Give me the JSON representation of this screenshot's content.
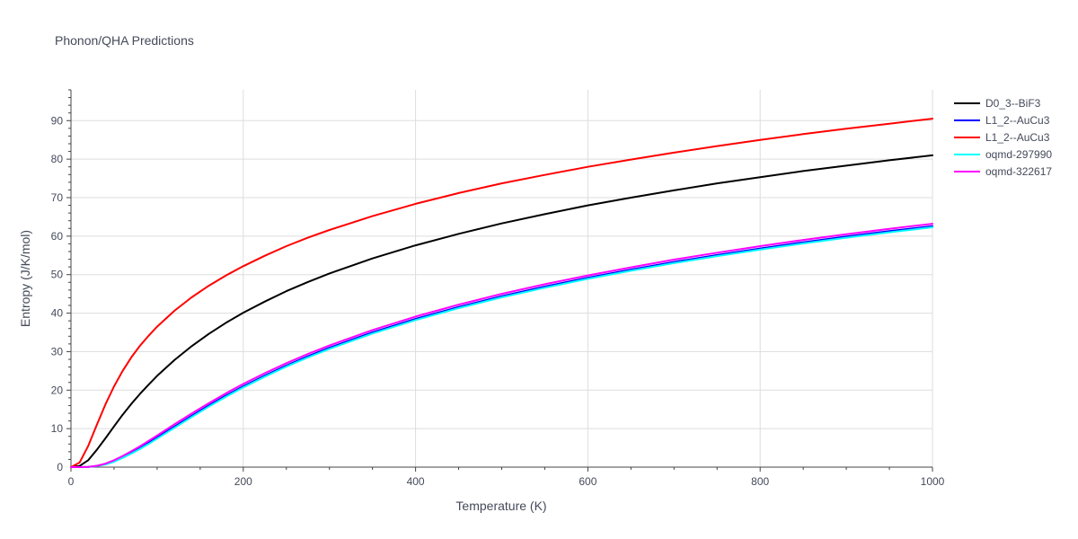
{
  "chart_data": {
    "type": "line",
    "title": "Phonon/QHA Predictions",
    "xlabel": "Temperature (K)",
    "ylabel": "Entropy (J/K/mol)",
    "xlim": [
      0,
      1000
    ],
    "ylim": [
      0,
      98
    ],
    "x_ticks": [
      0,
      200,
      400,
      600,
      800,
      1000
    ],
    "y_ticks": [
      0,
      10,
      20,
      30,
      40,
      50,
      60,
      70,
      80,
      90
    ],
    "grid": true,
    "legend_position": "top-right",
    "series": [
      {
        "name": "D0_3--BiF3",
        "color": "#000000",
        "x": [
          0,
          10,
          20,
          30,
          40,
          50,
          60,
          70,
          80,
          90,
          100,
          120,
          140,
          160,
          180,
          200,
          225,
          250,
          275,
          300,
          350,
          400,
          450,
          500,
          550,
          600,
          650,
          700,
          750,
          800,
          850,
          900,
          950,
          1000
        ],
        "y": [
          0,
          0.3,
          1.8,
          4.5,
          7.5,
          10.6,
          13.6,
          16.4,
          19.0,
          21.4,
          23.7,
          27.8,
          31.4,
          34.6,
          37.5,
          40.1,
          43.0,
          45.7,
          48.1,
          50.3,
          54.2,
          57.6,
          60.6,
          63.3,
          65.7,
          68.0,
          70.0,
          71.9,
          73.7,
          75.3,
          76.9,
          78.3,
          79.7,
          81.0
        ]
      },
      {
        "name": "L1_2--AuCu3",
        "color": "#0000ff",
        "x": [
          0,
          10,
          20,
          30,
          40,
          50,
          60,
          70,
          80,
          90,
          100,
          120,
          140,
          160,
          180,
          200,
          225,
          250,
          275,
          300,
          350,
          400,
          450,
          500,
          550,
          600,
          650,
          700,
          750,
          800,
          850,
          900,
          950,
          1000
        ],
        "y": [
          0,
          0,
          0.05,
          0.3,
          0.8,
          1.6,
          2.6,
          3.7,
          5.0,
          6.3,
          7.7,
          10.5,
          13.3,
          16.0,
          18.6,
          21.0,
          23.8,
          26.4,
          28.8,
          31.0,
          35.0,
          38.5,
          41.6,
          44.4,
          46.9,
          49.2,
          51.3,
          53.3,
          55.1,
          56.8,
          58.4,
          59.9,
          61.3,
          62.6
        ]
      },
      {
        "name": "L1_2--AuCu3",
        "color": "#ff0000",
        "x": [
          0,
          10,
          20,
          30,
          40,
          50,
          60,
          70,
          80,
          90,
          100,
          120,
          140,
          160,
          180,
          200,
          225,
          250,
          275,
          300,
          350,
          400,
          450,
          500,
          550,
          600,
          650,
          700,
          750,
          800,
          850,
          900,
          950,
          1000
        ],
        "y": [
          0,
          1.2,
          5.5,
          11.0,
          16.3,
          21.0,
          25.0,
          28.5,
          31.5,
          34.1,
          36.5,
          40.6,
          44.1,
          47.1,
          49.8,
          52.2,
          54.9,
          57.4,
          59.6,
          61.6,
          65.2,
          68.4,
          71.2,
          73.7,
          75.9,
          78.0,
          79.9,
          81.7,
          83.4,
          85.0,
          86.5,
          87.9,
          89.2,
          90.5
        ]
      },
      {
        "name": "oqmd-297990",
        "color": "#00ffff",
        "x": [
          0,
          10,
          20,
          30,
          40,
          50,
          60,
          70,
          80,
          90,
          100,
          120,
          140,
          160,
          180,
          200,
          225,
          250,
          275,
          300,
          350,
          400,
          450,
          500,
          550,
          600,
          650,
          700,
          750,
          800,
          850,
          900,
          950,
          1000
        ],
        "y": [
          0,
          0,
          0.04,
          0.25,
          0.7,
          1.4,
          2.4,
          3.5,
          4.7,
          6.0,
          7.4,
          10.2,
          13.0,
          15.7,
          18.3,
          20.7,
          23.5,
          26.1,
          28.5,
          30.7,
          34.7,
          38.2,
          41.3,
          44.1,
          46.6,
          48.9,
          51.0,
          53.0,
          54.8,
          56.5,
          58.1,
          59.6,
          61.0,
          62.3
        ]
      },
      {
        "name": "oqmd-322617",
        "color": "#ff00ff",
        "x": [
          0,
          10,
          20,
          30,
          40,
          50,
          60,
          70,
          80,
          90,
          100,
          120,
          140,
          160,
          180,
          200,
          225,
          250,
          275,
          300,
          350,
          400,
          450,
          500,
          550,
          600,
          650,
          700,
          750,
          800,
          850,
          900,
          950,
          1000
        ],
        "y": [
          0,
          0,
          0.06,
          0.35,
          0.9,
          1.8,
          2.9,
          4.1,
          5.4,
          6.8,
          8.2,
          11.1,
          13.9,
          16.6,
          19.2,
          21.6,
          24.4,
          27.0,
          29.4,
          31.6,
          35.6,
          39.1,
          42.2,
          45.0,
          47.5,
          49.8,
          51.9,
          53.9,
          55.7,
          57.4,
          59.0,
          60.5,
          61.9,
          63.2
        ]
      }
    ]
  }
}
